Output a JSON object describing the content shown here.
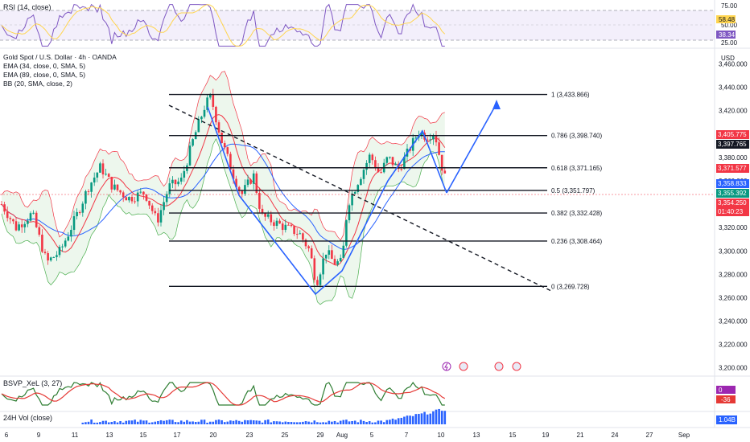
{
  "header": {
    "title": "Gold Spot / U.S. Dollar · 4h · OANDA",
    "indicators": [
      "EMA (34, close, 0, SMA, 5)",
      "EMA (89, close, 0, SMA, 5)",
      "BB (20, SMA, close, 2)"
    ],
    "currency": "USD"
  },
  "rsi_pane": {
    "label": "RSI (14, close)",
    "levels": [
      "75.00",
      "50.00",
      "25.00"
    ],
    "value_tags": [
      {
        "text": "58.48",
        "color": "#ffd54f",
        "text_color": "#131722"
      },
      {
        "text": "38.34",
        "color": "#7e57c2",
        "text_color": "#ffffff"
      }
    ]
  },
  "osc_pane": {
    "label": "BSVP_XeL (3, 27)",
    "value_tags": [
      {
        "text": "0",
        "color": "#9c27b0"
      },
      {
        "text": "-36",
        "color": "#e53935"
      }
    ]
  },
  "vol_pane": {
    "label": "24H Vol (close)",
    "value_tags": [
      {
        "text": "1.04B",
        "color": "#2962ff"
      }
    ]
  },
  "chart_data": {
    "type": "candlestick",
    "ylim": [
      3195,
      3470
    ],
    "yticks": [
      "3,460.000",
      "3,440.000",
      "3,420.000",
      "3,400.000",
      "3,380.000",
      "3,360.000",
      "3,340.000",
      "3,320.000",
      "3,300.000",
      "3,280.000",
      "3,260.000",
      "3,240.000",
      "3,220.000",
      "3,200.000"
    ],
    "xticks": [
      "6",
      "9",
      "11",
      "13",
      "15",
      "17",
      "20",
      "23",
      "25",
      "29",
      "Aug",
      "5",
      "7",
      "10",
      "13",
      "15",
      "19",
      "21",
      "24",
      "27",
      "Sep"
    ],
    "fib_levels": [
      {
        "ratio": "1",
        "price": 3433.866
      },
      {
        "ratio": "0.786",
        "price": 3398.74
      },
      {
        "ratio": "0.618",
        "price": 3371.165
      },
      {
        "ratio": "0.5",
        "price": 3351.797
      },
      {
        "ratio": "0.382",
        "price": 3332.428
      },
      {
        "ratio": "0.236",
        "price": 3308.464
      },
      {
        "ratio": "0",
        "price": 3269.728
      }
    ],
    "price_tags": [
      {
        "text": "3,405.775",
        "color": "#f23645"
      },
      {
        "text": "3,397.765",
        "color": "#131722"
      },
      {
        "text": "3,371.577",
        "color": "#f23645"
      },
      {
        "text": "3,358.833",
        "color": "#2962ff"
      },
      {
        "text": "3,355.392",
        "color": "#089981"
      },
      {
        "text": "3,354.250",
        "color": "#f23645"
      },
      {
        "text": "01:40:23",
        "color": "#f23645"
      }
    ],
    "colors": {
      "up": "#089981",
      "down": "#f23645",
      "ema34": "#f23645",
      "ema89": "#2962ff",
      "bb": "#4caf50",
      "pattern": "#2962ff"
    }
  }
}
